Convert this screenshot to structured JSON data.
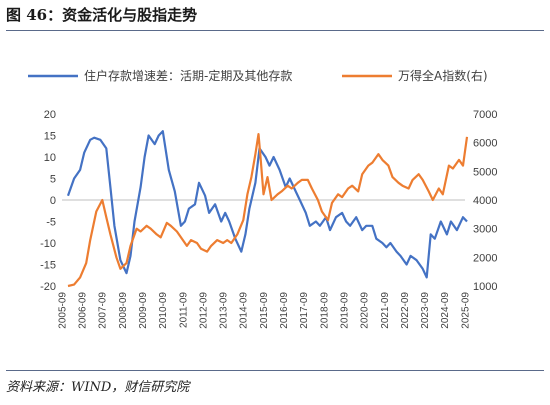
{
  "figure": {
    "title": "图 46：资金活化与股指走势",
    "source": "资料来源：WIND，财信研究院"
  },
  "chart_data": {
    "type": "line",
    "x_tick_labels": [
      "2005-09",
      "2006-09",
      "2007-09",
      "2008-09",
      "2009-09",
      "2010-09",
      "2011-09",
      "2012-09",
      "2013-09",
      "2014-09",
      "2015-09",
      "2016-09",
      "2017-09",
      "2018-09",
      "2019-09",
      "2020-09",
      "2021-09",
      "2022-09",
      "2023-09",
      "2024-09",
      "2025-09"
    ],
    "y_left": {
      "ticks": [
        "20",
        "15",
        "10",
        "5",
        "0",
        "-5",
        "-10",
        "-15",
        "-20"
      ],
      "ylim": [
        -20,
        20
      ]
    },
    "y_right": {
      "ticks": [
        "7000",
        "6000",
        "5000",
        "4000",
        "3000",
        "2000",
        "1000"
      ],
      "ylim": [
        1000,
        7000
      ]
    },
    "series": [
      {
        "name": "住户存款增速差：活期-定期及其他存款",
        "axis": "left",
        "color": "#4472c4",
        "x": [
          2006.0,
          2006.3,
          2006.6,
          2006.8,
          2007.1,
          2007.3,
          2007.6,
          2007.9,
          2008.1,
          2008.3,
          2008.6,
          2008.9,
          2009.1,
          2009.3,
          2009.6,
          2009.8,
          2010.0,
          2010.3,
          2010.5,
          2010.7,
          2011.0,
          2011.3,
          2011.6,
          2011.8,
          2012.0,
          2012.3,
          2012.5,
          2012.8,
          2013.0,
          2013.3,
          2013.6,
          2013.8,
          2014.0,
          2014.3,
          2014.6,
          2014.8,
          2015.0,
          2015.3,
          2015.5,
          2015.8,
          2016.0,
          2016.2,
          2016.5,
          2016.8,
          2017.0,
          2017.3,
          2017.5,
          2017.8,
          2018.0,
          2018.3,
          2018.5,
          2018.8,
          2019.0,
          2019.3,
          2019.6,
          2019.8,
          2020.0,
          2020.3,
          2020.6,
          2020.8,
          2021.1,
          2021.3,
          2021.6,
          2021.8,
          2022.0,
          2022.3,
          2022.5,
          2022.8,
          2023.0,
          2023.3,
          2023.6,
          2023.8,
          2024.0,
          2024.2,
          2024.5,
          2024.8,
          2025.0,
          2025.3,
          2025.6,
          2025.8
        ],
        "values": [
          1,
          5,
          7,
          11,
          14,
          14.5,
          14,
          12,
          3,
          -6,
          -14,
          -17,
          -13,
          -5,
          3,
          10,
          15,
          13,
          15,
          16,
          7,
          2,
          -6,
          -5,
          -2,
          -1,
          4,
          1,
          -3,
          -1,
          -5,
          -3,
          -5,
          -9,
          -12,
          -8,
          -2,
          4,
          12,
          10,
          8,
          10,
          7,
          3,
          5,
          2,
          0,
          -3,
          -6,
          -5,
          -6,
          -4,
          -7,
          -4,
          -3,
          -5,
          -6,
          -4,
          -7,
          -6,
          -6,
          -9,
          -10,
          -11,
          -10,
          -12,
          -13,
          -15,
          -13,
          -14,
          -16,
          -18,
          -8,
          -9,
          -5,
          -8,
          -5,
          -7,
          -4,
          -5
        ]
      },
      {
        "name": "万得全A指数(右)",
        "axis": "right",
        "color": "#ed7d31",
        "x": [
          2006.0,
          2006.3,
          2006.6,
          2006.9,
          2007.1,
          2007.4,
          2007.7,
          2007.9,
          2008.1,
          2008.4,
          2008.6,
          2008.9,
          2009.1,
          2009.4,
          2009.6,
          2009.9,
          2010.1,
          2010.4,
          2010.6,
          2010.9,
          2011.1,
          2011.4,
          2011.7,
          2011.9,
          2012.1,
          2012.4,
          2012.6,
          2012.9,
          2013.1,
          2013.4,
          2013.7,
          2013.9,
          2014.1,
          2014.4,
          2014.7,
          2014.9,
          2015.1,
          2015.3,
          2015.45,
          2015.55,
          2015.7,
          2015.9,
          2016.1,
          2016.4,
          2016.6,
          2016.9,
          2017.1,
          2017.4,
          2017.6,
          2017.9,
          2018.1,
          2018.4,
          2018.6,
          2018.9,
          2019.1,
          2019.4,
          2019.6,
          2019.9,
          2020.1,
          2020.4,
          2020.6,
          2020.9,
          2021.1,
          2021.4,
          2021.6,
          2021.9,
          2022.1,
          2022.4,
          2022.6,
          2022.9,
          2023.1,
          2023.4,
          2023.6,
          2023.9,
          2024.1,
          2024.4,
          2024.6,
          2024.9,
          2025.1,
          2025.4,
          2025.6,
          2025.8
        ],
        "values": [
          1000,
          1050,
          1300,
          1800,
          2600,
          3600,
          4000,
          3400,
          2800,
          2000,
          1600,
          1800,
          2400,
          3000,
          2900,
          3100,
          3000,
          2800,
          2700,
          3200,
          3100,
          2900,
          2600,
          2400,
          2600,
          2500,
          2300,
          2200,
          2400,
          2600,
          2500,
          2600,
          2500,
          2800,
          3300,
          4200,
          4800,
          5600,
          6300,
          5500,
          4200,
          4800,
          4000,
          4200,
          4300,
          4500,
          4400,
          4600,
          4700,
          4700,
          4400,
          4000,
          3600,
          3300,
          3900,
          4200,
          4100,
          4400,
          4500,
          4300,
          4900,
          5200,
          5300,
          5600,
          5400,
          5200,
          4800,
          4600,
          4500,
          4400,
          4700,
          4900,
          4700,
          4300,
          4000,
          4400,
          4200,
          5200,
          5100,
          5400,
          5200,
          6200
        ]
      }
    ],
    "legend": "top"
  }
}
